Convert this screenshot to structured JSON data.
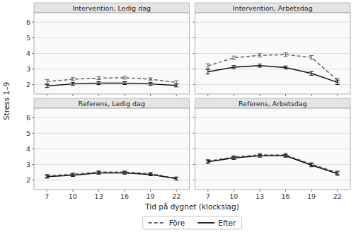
{
  "chart_data": [
    {
      "type": "line",
      "title": "Intervention, Ledig dag",
      "ylabel": "Stress 1–9",
      "x": [
        7,
        10,
        13,
        16,
        19,
        22
      ],
      "series": [
        {
          "name": "Före",
          "color": "#666666",
          "line_style": "dashed",
          "values": [
            2.2,
            2.35,
            2.42,
            2.45,
            2.35,
            2.15
          ],
          "errors": [
            0.12,
            0.1,
            0.09,
            0.09,
            0.09,
            0.1
          ]
        },
        {
          "name": "Efter",
          "color": "#111111",
          "line_style": "solid",
          "values": [
            1.92,
            2.05,
            2.1,
            2.1,
            2.05,
            1.95
          ],
          "errors": [
            0.1,
            0.09,
            0.09,
            0.09,
            0.09,
            0.09
          ]
        }
      ],
      "xlim": [
        5.5,
        23.5
      ],
      "xticks": [
        7,
        10,
        13,
        16,
        19,
        22
      ],
      "ylim": [
        1.4,
        6.6
      ],
      "yticks": [
        2,
        3,
        4,
        5,
        6
      ],
      "grid": true,
      "tick_labels": "y"
    },
    {
      "type": "line",
      "title": "Intervention, Arbetsdag",
      "x": [
        7,
        10,
        13,
        16,
        19,
        22
      ],
      "series": [
        {
          "name": "Före",
          "color": "#666666",
          "line_style": "dashed",
          "values": [
            3.2,
            3.72,
            3.88,
            3.92,
            3.75,
            2.28
          ],
          "errors": [
            0.14,
            0.11,
            0.11,
            0.11,
            0.12,
            0.14
          ]
        },
        {
          "name": "Efter",
          "color": "#111111",
          "line_style": "solid",
          "values": [
            2.82,
            3.12,
            3.22,
            3.1,
            2.72,
            2.15
          ],
          "errors": [
            0.14,
            0.1,
            0.1,
            0.1,
            0.12,
            0.14
          ]
        }
      ],
      "xlim": [
        5.5,
        23.5
      ],
      "xticks": [
        7,
        10,
        13,
        16,
        19,
        22
      ],
      "ylim": [
        1.4,
        6.6
      ],
      "yticks": [
        2,
        3,
        4,
        5,
        6
      ],
      "grid": true,
      "tick_labels": false
    },
    {
      "type": "line",
      "title": "Referens, Ledig dag",
      "xlabel": "Tid på dygnet (klockslag)",
      "x": [
        7,
        10,
        13,
        16,
        19,
        22
      ],
      "series": [
        {
          "name": "Före",
          "color": "#666666",
          "line_style": "dashed",
          "values": [
            2.28,
            2.38,
            2.52,
            2.52,
            2.42,
            2.12
          ],
          "errors": [
            0.09,
            0.08,
            0.08,
            0.08,
            0.08,
            0.09
          ]
        },
        {
          "name": "Efter",
          "color": "#111111",
          "line_style": "solid",
          "values": [
            2.22,
            2.32,
            2.46,
            2.46,
            2.36,
            2.1
          ],
          "errors": [
            0.09,
            0.08,
            0.08,
            0.08,
            0.08,
            0.09
          ]
        }
      ],
      "xlim": [
        5.5,
        23.5
      ],
      "xticks": [
        7,
        10,
        13,
        16,
        19,
        22
      ],
      "ylim": [
        1.4,
        6.6
      ],
      "yticks": [
        2,
        3,
        4,
        5,
        6
      ],
      "grid": true,
      "tick_labels": true
    },
    {
      "type": "line",
      "title": "Referens, Arbetsdag",
      "x": [
        7,
        10,
        13,
        16,
        19,
        22
      ],
      "series": [
        {
          "name": "Före",
          "color": "#666666",
          "line_style": "dashed",
          "values": [
            3.22,
            3.48,
            3.62,
            3.62,
            3.02,
            2.48
          ],
          "errors": [
            0.1,
            0.09,
            0.09,
            0.09,
            0.1,
            0.11
          ]
        },
        {
          "name": "Efter",
          "color": "#111111",
          "line_style": "solid",
          "values": [
            3.18,
            3.42,
            3.56,
            3.56,
            2.96,
            2.42
          ],
          "errors": [
            0.1,
            0.09,
            0.09,
            0.09,
            0.1,
            0.11
          ]
        }
      ],
      "xlim": [
        5.5,
        23.5
      ],
      "xticks": [
        7,
        10,
        13,
        16,
        19,
        22
      ],
      "ylim": [
        1.4,
        6.6
      ],
      "yticks": [
        2,
        3,
        4,
        5,
        6
      ],
      "grid": true,
      "tick_labels": "x"
    }
  ]
}
